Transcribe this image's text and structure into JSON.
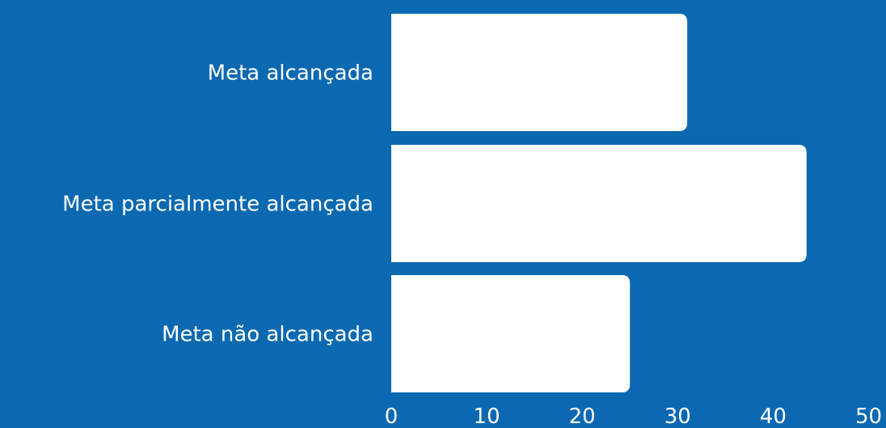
{
  "colors": {
    "background": "#0b69b1",
    "bar": "#ffffff",
    "text": "#ffffff"
  },
  "chart_data": {
    "type": "bar",
    "orientation": "horizontal",
    "categories": [
      "Meta alcançada",
      "Meta parcialmente alcançada",
      "Meta não alcançada"
    ],
    "values": [
      31,
      43.5,
      25
    ],
    "xlim": [
      0,
      50
    ],
    "xticks": [
      "0",
      "10",
      "20",
      "30",
      "40",
      "50"
    ],
    "title": "",
    "xlabel": "",
    "ylabel": "",
    "grid": false,
    "legend": "none"
  }
}
